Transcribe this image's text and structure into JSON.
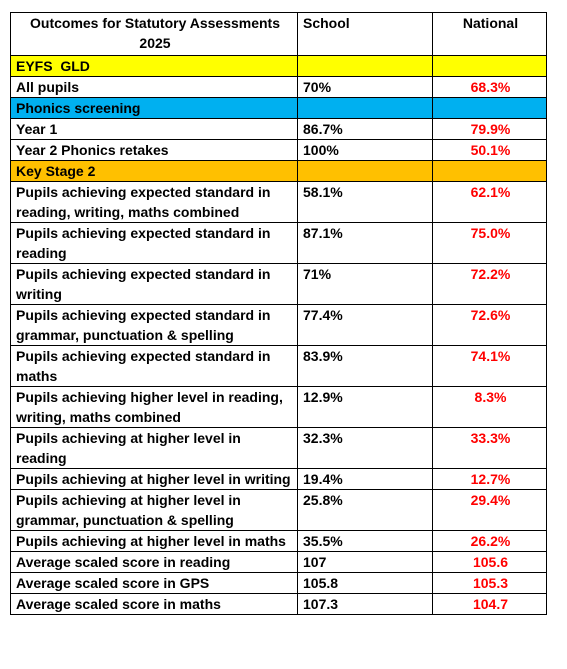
{
  "colors": {
    "national_text": "#ff0000",
    "eyfs_band": "#ffff00",
    "phonics_band": "#00b0f0",
    "ks2_band": "#ffc000"
  },
  "header": {
    "title_line1": "Outcomes for Statutory Assessments",
    "title_line2": "2025",
    "school": "School",
    "national": "National"
  },
  "sections": {
    "eyfs": "EYFS  GLD",
    "phonics": "Phonics screening",
    "ks2": "Key Stage 2"
  },
  "eyfs_rows": [
    {
      "label": "All pupils",
      "school": "70%",
      "national": "68.3%"
    }
  ],
  "phonics_rows": [
    {
      "label": "Year 1",
      "school": "86.7%",
      "national": "79.9%"
    },
    {
      "label": "Year 2 Phonics retakes",
      "school": "100%",
      "national": "50.1%"
    }
  ],
  "ks2_rows": [
    {
      "label": "Pupils achieving expected standard in reading, writing, maths combined",
      "school": "58.1%",
      "national": "62.1%"
    },
    {
      "label": "Pupils achieving expected standard in reading",
      "school": "87.1%",
      "national": "75.0%"
    },
    {
      "label": "Pupils achieving expected standard in writing",
      "school": "71%",
      "national": "72.2%"
    },
    {
      "label": "Pupils achieving expected standard in grammar, punctuation & spelling",
      "school": "77.4%",
      "national": "72.6%"
    },
    {
      "label": "Pupils achieving expected standard in maths",
      "school": "83.9%",
      "national": "74.1%"
    },
    {
      "label": "Pupils achieving higher level in reading, writing, maths combined",
      "school": "12.9%",
      "national": "8.3%"
    },
    {
      "label": "Pupils achieving at higher level  in reading",
      "school": "32.3%",
      "national": "33.3%"
    },
    {
      "label": "Pupils achieving at higher level  in writing",
      "school": "19.4%",
      "national": "12.7%"
    },
    {
      "label": "Pupils achieving at higher level in grammar, punctuation & spelling",
      "school": "25.8%",
      "national": "29.4%"
    },
    {
      "label": "Pupils achieving at higher level  in maths",
      "school": "35.5%",
      "national": "26.2%"
    },
    {
      "label": "Average scaled score in reading",
      "school": "107",
      "national": "105.6"
    },
    {
      "label": "Average scaled score in GPS",
      "school": "105.8",
      "national": "105.3"
    },
    {
      "label": "Average scaled score in maths",
      "school": "107.3",
      "national": "104.7"
    }
  ]
}
